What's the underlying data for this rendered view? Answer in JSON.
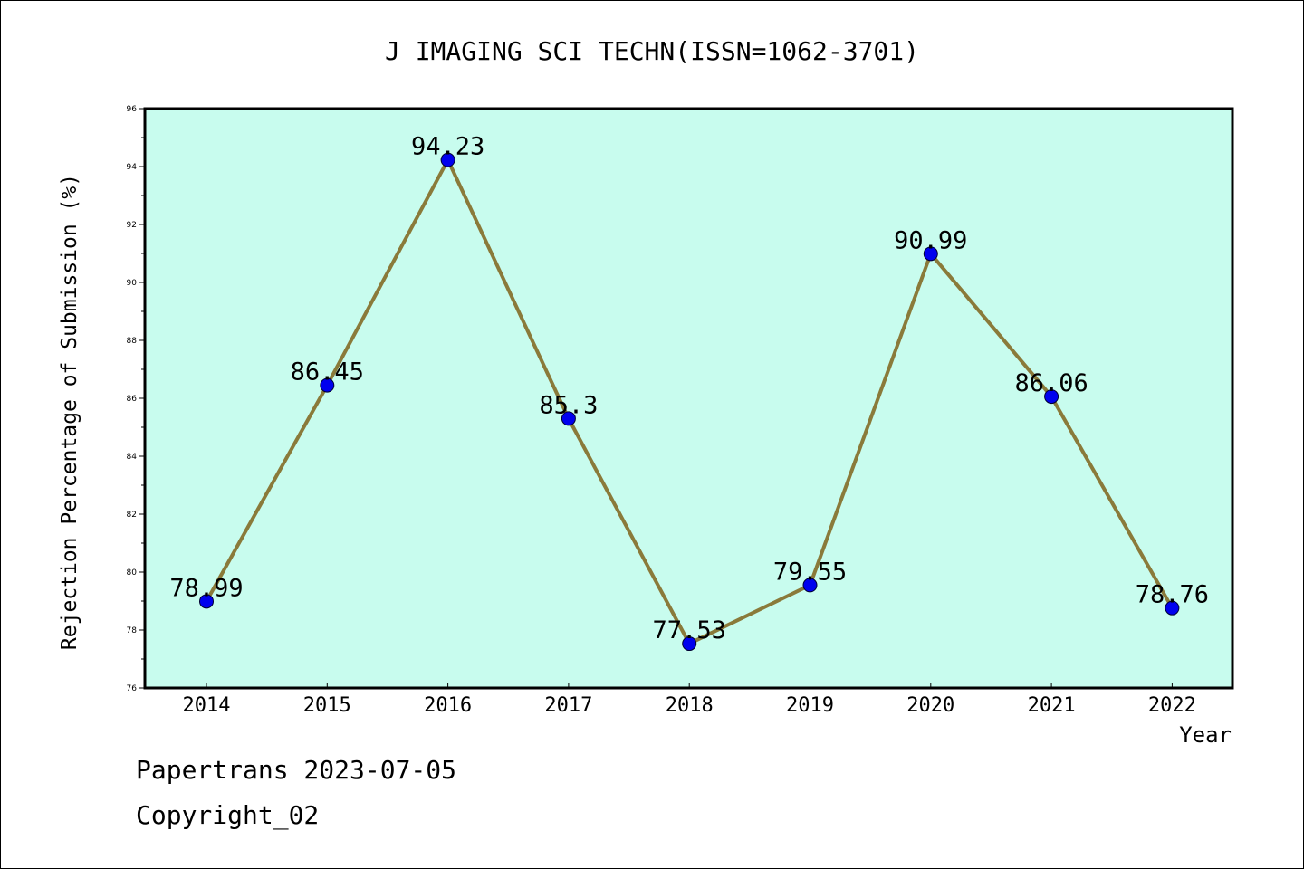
{
  "chart_data": {
    "type": "line",
    "title": "J IMAGING SCI TECHN(ISSN=1062-3701)",
    "xlabel": "Year",
    "ylabel": "Rejection Percentage of Submission (%)",
    "categories": [
      "2014",
      "2015",
      "2016",
      "2017",
      "2018",
      "2019",
      "2020",
      "2021",
      "2022"
    ],
    "values": [
      78.99,
      86.45,
      94.23,
      85.3,
      77.53,
      79.55,
      90.99,
      86.06,
      78.76
    ],
    "data_labels": [
      "78.99",
      "86.45",
      "94.23",
      "85.3",
      "77.53",
      "79.55",
      "90.99",
      "86.06",
      "78.76"
    ],
    "ylim": [
      76,
      96
    ],
    "yticks": [
      76,
      78,
      80,
      82,
      84,
      86,
      88,
      90,
      92,
      94,
      96
    ],
    "ytick_labels": [
      "76",
      "78",
      "80",
      "82",
      "84",
      "86",
      "88",
      "90",
      "92",
      "94",
      "96"
    ],
    "grid": false,
    "colors": {
      "plot_background": "#c8fcee",
      "line": "#8a7a3a",
      "marker": "#0000ee"
    }
  },
  "footer": {
    "date_line": "Papertrans 2023-07-05",
    "copyright_line": "Copyright_02"
  }
}
